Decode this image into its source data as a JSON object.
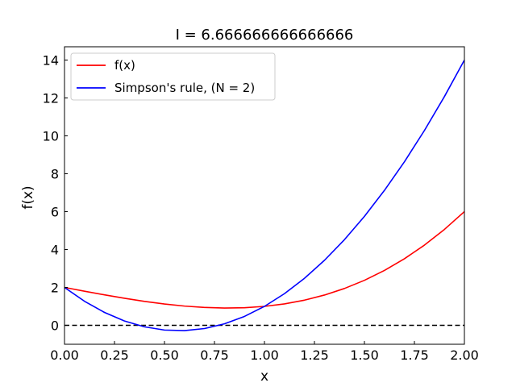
{
  "chart_data": {
    "type": "line",
    "title": "I = 6.666666666666666",
    "xlabel": "x",
    "ylabel": "f(x)",
    "xlim": [
      0,
      2
    ],
    "ylim": [
      -1,
      14.7
    ],
    "x_ticks": [
      0,
      0.25,
      0.5,
      0.75,
      1.0,
      1.25,
      1.5,
      1.75,
      2.0
    ],
    "x_tick_labels": [
      "0.00",
      "0.25",
      "0.50",
      "0.75",
      "1.00",
      "1.25",
      "1.50",
      "1.75",
      "2.00"
    ],
    "y_ticks": [
      0,
      2,
      4,
      6,
      8,
      10,
      12,
      14
    ],
    "y_tick_labels": [
      "0",
      "2",
      "4",
      "6",
      "8",
      "10",
      "12",
      "14"
    ],
    "grid": false,
    "legend_position": "top-left",
    "series": [
      {
        "name": "f(x)",
        "color": "#ff0000",
        "x": [
          0.0,
          0.1,
          0.2,
          0.3,
          0.4,
          0.5,
          0.6,
          0.7,
          0.8,
          0.9,
          1.0,
          1.1,
          1.2,
          1.3,
          1.4,
          1.5,
          1.6,
          1.7,
          1.8,
          1.9,
          2.0
        ],
        "y": [
          2.0,
          1.801,
          1.608,
          1.427,
          1.264,
          1.125,
          1.016,
          0.943,
          0.912,
          0.929,
          1.0,
          1.131,
          1.328,
          1.597,
          1.944,
          2.375,
          2.896,
          3.513,
          4.232,
          5.059,
          6.0
        ]
      },
      {
        "name": "Simpson's rule, (N = 2)",
        "color": "#0000ff",
        "x": [
          0.0,
          0.1,
          0.2,
          0.3,
          0.4,
          0.5,
          0.6,
          0.7,
          0.8,
          0.9,
          1.0,
          1.1,
          1.2,
          1.3,
          1.4,
          1.5,
          1.6,
          1.7,
          1.8,
          1.9,
          2.0
        ],
        "y": [
          2.0,
          1.27,
          0.68,
          0.23,
          -0.08,
          -0.25,
          -0.28,
          -0.17,
          0.08,
          0.47,
          1.0,
          1.67,
          2.48,
          3.43,
          4.52,
          5.75,
          7.12,
          8.63,
          10.28,
          12.07,
          14.0
        ]
      }
    ],
    "reference_line": {
      "y": 0,
      "color": "#000000",
      "style": "dashed"
    }
  }
}
